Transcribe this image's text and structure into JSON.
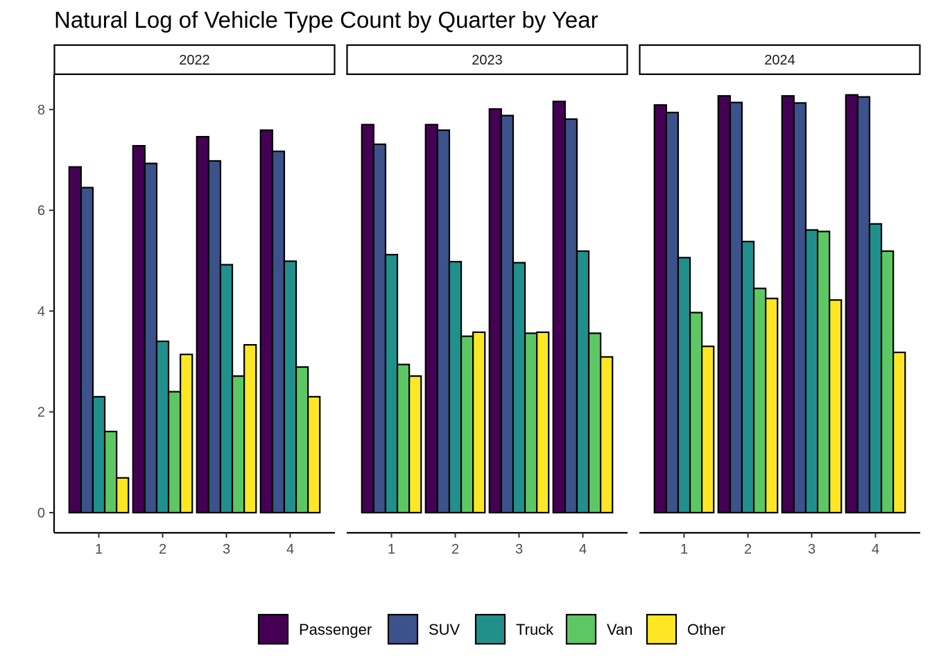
{
  "chart_data": {
    "type": "bar",
    "title": "Natural Log of Vehicle Type Count by Quarter by Year",
    "xlabel": "",
    "ylabel": "",
    "ylim": [
      -0.4,
      8.7
    ],
    "y_ticks": [
      0,
      2,
      4,
      6,
      8
    ],
    "categories": [
      "1",
      "2",
      "3",
      "4"
    ],
    "legend_position": "bottom",
    "grid": false,
    "series": [
      {
        "name": "Passenger",
        "color": "#440154"
      },
      {
        "name": "SUV",
        "color": "#3B528B"
      },
      {
        "name": "Truck",
        "color": "#21908C"
      },
      {
        "name": "Van",
        "color": "#5DC863"
      },
      {
        "name": "Other",
        "color": "#FDE725"
      }
    ],
    "panels": [
      {
        "label": "2022",
        "values": [
          [
            6.86,
            6.45,
            2.3,
            1.61,
            0.69
          ],
          [
            7.28,
            6.93,
            3.4,
            2.4,
            3.14
          ],
          [
            7.46,
            6.98,
            4.92,
            2.71,
            3.33
          ],
          [
            7.59,
            7.17,
            4.99,
            2.89,
            2.3
          ]
        ]
      },
      {
        "label": "2023",
        "values": [
          [
            7.7,
            7.31,
            5.12,
            2.94,
            2.71
          ],
          [
            7.7,
            7.59,
            4.98,
            3.5,
            3.58
          ],
          [
            8.01,
            7.88,
            4.96,
            3.56,
            3.58
          ],
          [
            8.16,
            7.81,
            5.19,
            3.56,
            3.09
          ]
        ]
      },
      {
        "label": "2024",
        "values": [
          [
            8.09,
            7.94,
            5.06,
            3.97,
            3.3
          ],
          [
            8.27,
            8.14,
            5.38,
            4.45,
            4.25
          ],
          [
            8.27,
            8.13,
            5.61,
            5.58,
            4.22
          ],
          [
            8.29,
            8.25,
            5.73,
            5.19,
            3.18
          ]
        ]
      }
    ]
  }
}
